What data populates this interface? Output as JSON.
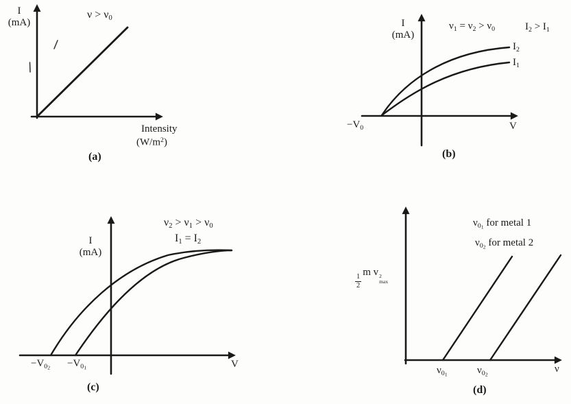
{
  "colors": {
    "background": "#fdfdfb",
    "ink": "#1a1a1a"
  },
  "figure_title": "photoelectric-effect-graphs",
  "panels": {
    "a": {
      "caption": "(a)",
      "y_axis_label": [
        "I",
        "(mA)"
      ],
      "annotation": [
        {
          "t": "ν > ν"
        },
        {
          "t": "0",
          "s": "sub"
        }
      ],
      "x_axis_label_line1": "Intensity",
      "x_axis_label_line2": [
        {
          "t": "(W/m"
        },
        {
          "t": "2",
          "s": "sup"
        },
        {
          "t": ")"
        }
      ]
    },
    "b": {
      "caption": "(b)",
      "y_axis_label": [
        "I",
        "(mA)"
      ],
      "annotation_frequency": [
        {
          "t": "ν"
        },
        {
          "t": "1",
          "s": "sub"
        },
        {
          "t": " = ν"
        },
        {
          "t": "2",
          "s": "sub"
        },
        {
          "t": " > ν"
        },
        {
          "t": "0",
          "s": "sub"
        }
      ],
      "annotation_intensity": [
        {
          "t": "I"
        },
        {
          "t": "2",
          "s": "sub"
        },
        {
          "t": " > I"
        },
        {
          "t": "1",
          "s": "sub"
        }
      ],
      "curve_label_upper": [
        {
          "t": "I"
        },
        {
          "t": "2",
          "s": "sub"
        }
      ],
      "curve_label_lower": [
        {
          "t": "I"
        },
        {
          "t": "1",
          "s": "sub"
        }
      ],
      "stopping_potential": [
        {
          "t": "−V"
        },
        {
          "t": "0",
          "s": "sub"
        }
      ],
      "x_axis_label": "V"
    },
    "c": {
      "caption": "(c)",
      "y_axis_label": [
        "I",
        "(mA)"
      ],
      "annotation_frequency": [
        {
          "t": "ν"
        },
        {
          "t": "2",
          "s": "sub"
        },
        {
          "t": " > ν"
        },
        {
          "t": "1",
          "s": "sub"
        },
        {
          "t": " > ν"
        },
        {
          "t": "0",
          "s": "sub"
        }
      ],
      "annotation_intensity": [
        {
          "t": "I"
        },
        {
          "t": "1",
          "s": "sub"
        },
        {
          "t": " = I"
        },
        {
          "t": "2",
          "s": "sub"
        }
      ],
      "stopping_potential_2": [
        {
          "t": "−V"
        },
        {
          "t": "0",
          "s": "sub"
        },
        {
          "t": "2",
          "s": "subsub"
        }
      ],
      "stopping_potential_1": [
        {
          "t": "−V"
        },
        {
          "t": "0",
          "s": "sub"
        },
        {
          "t": "1",
          "s": "subsub"
        }
      ],
      "x_axis_label": "V"
    },
    "d": {
      "caption": "(d)",
      "y_axis_label_fraction": {
        "num": "1",
        "den": "2"
      },
      "y_axis_label_rest": [
        {
          "t": "m v"
        },
        {
          "s": "stack",
          "top": "2",
          "bot": "max"
        }
      ],
      "legend_metal1": [
        {
          "t": "ν"
        },
        {
          "t": "0",
          "s": "sub"
        },
        {
          "t": "1",
          "s": "subsub"
        },
        {
          "t": " for metal 1"
        }
      ],
      "legend_metal2": [
        {
          "t": "ν"
        },
        {
          "t": "0",
          "s": "sub"
        },
        {
          "t": "2",
          "s": "subsub"
        },
        {
          "t": " for metal 2"
        }
      ],
      "threshold_frequency_1": [
        {
          "t": "ν"
        },
        {
          "t": "0",
          "s": "sub"
        },
        {
          "t": "1",
          "s": "subsub"
        }
      ],
      "threshold_frequency_2": [
        {
          "t": "ν"
        },
        {
          "t": "0",
          "s": "sub"
        },
        {
          "t": "2",
          "s": "subsub"
        }
      ],
      "x_axis_label": "ν"
    }
  }
}
